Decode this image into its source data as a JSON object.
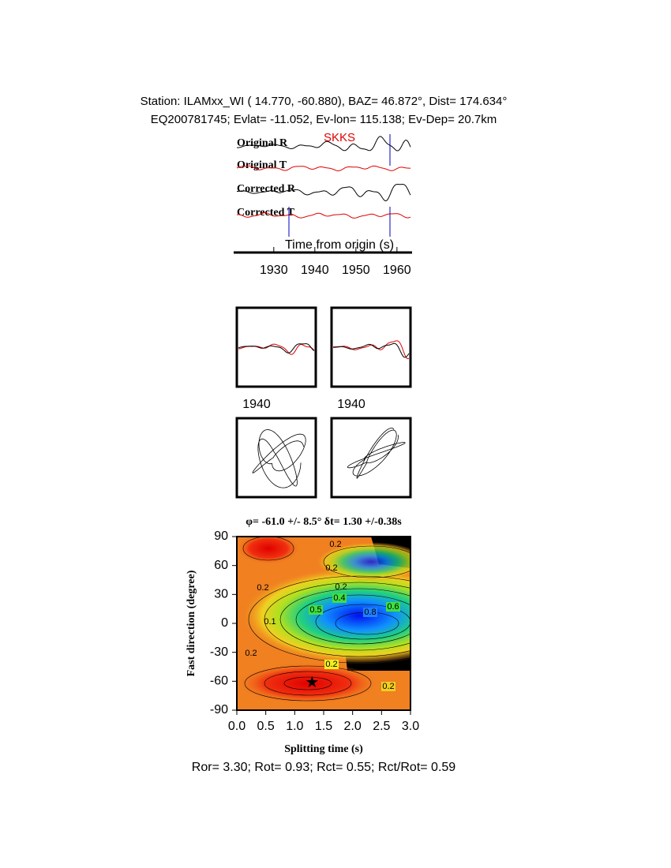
{
  "header": {
    "line1": "Station: ILAMxx_WI (  14.770,  -60.880), BAZ=   46.872°, Dist=  174.634°",
    "line2": "EQ200781745; Evlat= -11.052, Ev-lon= 115.138; Ev-Dep= 20.7km"
  },
  "traces": {
    "labels": [
      "Original R",
      "Original T",
      "Corrected R",
      "Corrected T"
    ],
    "phase": "SKKS",
    "xlabel": "Time from origin (s)",
    "xlim": [
      1921,
      1963.3
    ],
    "xticks": [
      1930,
      1940,
      1950,
      1960
    ]
  },
  "particle_motion": {
    "tick_labels": [
      "1940",
      "1940"
    ]
  },
  "grid_search": {
    "title": "φ= -61.0 +/- 8.5° δt= 1.30 +/-0.38s",
    "xlabel": "Splitting time (s)",
    "ylabel": "Fast direction (degree)",
    "xlim": [
      0,
      3
    ],
    "ylim": [
      -90,
      90
    ],
    "xticks": [
      {
        "value": 0,
        "label": "0.0"
      },
      {
        "value": 0.5,
        "label": "0.5"
      },
      {
        "value": 1,
        "label": "1.0"
      },
      {
        "value": 1.5,
        "label": "1.5"
      },
      {
        "value": 2,
        "label": "2.0"
      },
      {
        "value": 2.5,
        "label": "2.5"
      },
      {
        "value": 3,
        "label": "3.0"
      }
    ],
    "yticks": [
      -90,
      -60,
      -30,
      0,
      30,
      60,
      90
    ],
    "best": {
      "dt": 1.3,
      "phi": -61
    },
    "contour_labels": [
      "0.2",
      "0.2",
      "0.2",
      "0.2",
      "0.4",
      "0.5",
      "0.8",
      "0.6",
      "0.1",
      "0.2",
      "0.2",
      "0.2"
    ]
  },
  "footer": "Ror= 3.30; Rot= 0.93; Rct= 0.55; Rct/Rot= 0.59"
}
